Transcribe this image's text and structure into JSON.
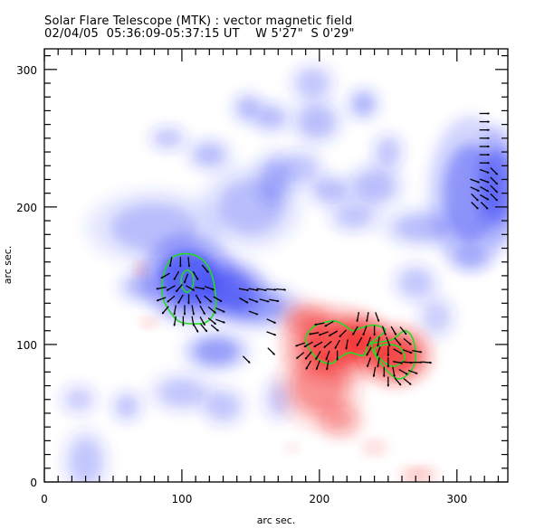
{
  "header": {
    "title": "Solar Flare Telescope (MTK) : vector magnetic field",
    "date": "02/04/05",
    "time_range": "05:36:09-05:37:15 UT",
    "position_ew": "W 5'27\"",
    "position_ns": "S 0'29\""
  },
  "chart_data": {
    "type": "heatmap",
    "title": "Solar Flare Telescope (MTK) : vector magnetic field",
    "subtitle": "02/04/05  05:36:09-05:37:15 UT    W 5'27\"  S 0'29\"",
    "xlabel": "arc sec.",
    "ylabel": "arc sec.",
    "xlim": [
      0,
      337
    ],
    "ylim": [
      0,
      315
    ],
    "xticks": [
      0,
      100,
      200,
      300
    ],
    "yticks": [
      0,
      100,
      200,
      300
    ],
    "xtick_labels": [
      "0",
      "100",
      "200",
      "300"
    ],
    "ytick_labels": [
      "0",
      "100",
      "200",
      "300"
    ],
    "minor_tick_step": 10,
    "colors": {
      "negative_polarity": "#3b46f5",
      "positive_polarity": "#f22020",
      "contour": "#22dd22",
      "vector": "#000000",
      "frame": "#000000"
    },
    "field_blobs": [
      {
        "polarity": "negative",
        "x": 105,
        "y": 148,
        "rx": 28,
        "ry": 26,
        "strength": 1.0
      },
      {
        "polarity": "negative",
        "x": 135,
        "y": 140,
        "rx": 22,
        "ry": 18,
        "strength": 0.8
      },
      {
        "polarity": "negative",
        "x": 155,
        "y": 128,
        "rx": 26,
        "ry": 14,
        "strength": 0.55
      },
      {
        "polarity": "negative",
        "x": 125,
        "y": 95,
        "rx": 20,
        "ry": 12,
        "strength": 0.55
      },
      {
        "polarity": "negative",
        "x": 80,
        "y": 185,
        "rx": 40,
        "ry": 22,
        "strength": 0.35
      },
      {
        "polarity": "negative",
        "x": 150,
        "y": 200,
        "rx": 30,
        "ry": 25,
        "strength": 0.35
      },
      {
        "polarity": "negative",
        "x": 70,
        "y": 142,
        "rx": 14,
        "ry": 10,
        "strength": 0.35
      },
      {
        "polarity": "negative",
        "x": 90,
        "y": 250,
        "rx": 12,
        "ry": 8,
        "strength": 0.3
      },
      {
        "polarity": "negative",
        "x": 120,
        "y": 238,
        "rx": 14,
        "ry": 10,
        "strength": 0.35
      },
      {
        "polarity": "negative",
        "x": 148,
        "y": 272,
        "rx": 10,
        "ry": 10,
        "strength": 0.35
      },
      {
        "polarity": "negative",
        "x": 165,
        "y": 265,
        "rx": 12,
        "ry": 10,
        "strength": 0.35
      },
      {
        "polarity": "negative",
        "x": 198,
        "y": 262,
        "rx": 16,
        "ry": 14,
        "strength": 0.35
      },
      {
        "polarity": "negative",
        "x": 232,
        "y": 275,
        "rx": 10,
        "ry": 10,
        "strength": 0.4
      },
      {
        "polarity": "negative",
        "x": 208,
        "y": 212,
        "rx": 14,
        "ry": 10,
        "strength": 0.35
      },
      {
        "polarity": "negative",
        "x": 185,
        "y": 228,
        "rx": 16,
        "ry": 12,
        "strength": 0.3
      },
      {
        "polarity": "negative",
        "x": 167,
        "y": 220,
        "rx": 12,
        "ry": 18,
        "strength": 0.35
      },
      {
        "polarity": "negative",
        "x": 225,
        "y": 193,
        "rx": 16,
        "ry": 10,
        "strength": 0.3
      },
      {
        "polarity": "negative",
        "x": 240,
        "y": 215,
        "rx": 18,
        "ry": 14,
        "strength": 0.35
      },
      {
        "polarity": "negative",
        "x": 250,
        "y": 240,
        "rx": 10,
        "ry": 12,
        "strength": 0.3
      },
      {
        "polarity": "negative",
        "x": 310,
        "y": 210,
        "rx": 25,
        "ry": 45,
        "strength": 0.6
      },
      {
        "polarity": "negative",
        "x": 330,
        "y": 215,
        "rx": 14,
        "ry": 35,
        "strength": 0.7
      },
      {
        "polarity": "negative",
        "x": 275,
        "y": 185,
        "rx": 25,
        "ry": 12,
        "strength": 0.35
      },
      {
        "polarity": "negative",
        "x": 270,
        "y": 145,
        "rx": 14,
        "ry": 12,
        "strength": 0.3
      },
      {
        "polarity": "negative",
        "x": 310,
        "y": 165,
        "rx": 14,
        "ry": 10,
        "strength": 0.3
      },
      {
        "polarity": "negative",
        "x": 195,
        "y": 290,
        "rx": 14,
        "ry": 12,
        "strength": 0.3
      },
      {
        "polarity": "negative",
        "x": 60,
        "y": 55,
        "rx": 10,
        "ry": 10,
        "strength": 0.3
      },
      {
        "polarity": "negative",
        "x": 100,
        "y": 65,
        "rx": 20,
        "ry": 12,
        "strength": 0.3
      },
      {
        "polarity": "negative",
        "x": 130,
        "y": 55,
        "rx": 14,
        "ry": 12,
        "strength": 0.3
      },
      {
        "polarity": "negative",
        "x": 30,
        "y": 15,
        "rx": 14,
        "ry": 20,
        "strength": 0.3
      },
      {
        "polarity": "negative",
        "x": 25,
        "y": 60,
        "rx": 12,
        "ry": 10,
        "strength": 0.25
      },
      {
        "polarity": "negative",
        "x": 170,
        "y": 60,
        "rx": 10,
        "ry": 14,
        "strength": 0.25
      },
      {
        "polarity": "negative",
        "x": 285,
        "y": 120,
        "rx": 12,
        "ry": 14,
        "strength": 0.25
      },
      {
        "polarity": "positive",
        "x": 210,
        "y": 100,
        "rx": 30,
        "ry": 22,
        "strength": 0.85
      },
      {
        "polarity": "positive",
        "x": 255,
        "y": 92,
        "rx": 22,
        "ry": 18,
        "strength": 0.95
      },
      {
        "polarity": "positive",
        "x": 232,
        "y": 105,
        "rx": 15,
        "ry": 14,
        "strength": 0.7
      },
      {
        "polarity": "positive",
        "x": 200,
        "y": 70,
        "rx": 25,
        "ry": 25,
        "strength": 0.5
      },
      {
        "polarity": "positive",
        "x": 215,
        "y": 45,
        "rx": 15,
        "ry": 12,
        "strength": 0.35
      },
      {
        "polarity": "positive",
        "x": 190,
        "y": 118,
        "rx": 16,
        "ry": 12,
        "strength": 0.45
      },
      {
        "polarity": "positive",
        "x": 272,
        "y": 5,
        "rx": 12,
        "ry": 5,
        "strength": 0.3
      },
      {
        "polarity": "positive",
        "x": 240,
        "y": 25,
        "rx": 8,
        "ry": 5,
        "strength": 0.2
      },
      {
        "polarity": "positive",
        "x": 70,
        "y": 155,
        "rx": 4,
        "ry": 4,
        "strength": 0.3
      },
      {
        "polarity": "positive",
        "x": 76,
        "y": 116,
        "rx": 5,
        "ry": 3,
        "strength": 0.3
      },
      {
        "polarity": "positive",
        "x": 180,
        "y": 25,
        "rx": 4,
        "ry": 3,
        "strength": 0.2
      }
    ],
    "contours": [
      {
        "name": "negative-outer",
        "points": [
          [
            87,
            152
          ],
          [
            93,
            163
          ],
          [
            103,
            166
          ],
          [
            113,
            163
          ],
          [
            120,
            155
          ],
          [
            124,
            140
          ],
          [
            124,
            125
          ],
          [
            117,
            116
          ],
          [
            100,
            116
          ],
          [
            92,
            123
          ],
          [
            86,
            135
          ]
        ]
      },
      {
        "name": "negative-inner",
        "points": [
          [
            100,
            150
          ],
          [
            104,
            154
          ],
          [
            108,
            150
          ],
          [
            108,
            143
          ],
          [
            104,
            138
          ],
          [
            100,
            142
          ]
        ]
      },
      {
        "name": "positive-left",
        "points": [
          [
            190,
            103
          ],
          [
            196,
            113
          ],
          [
            210,
            117
          ],
          [
            218,
            114
          ],
          [
            224,
            110
          ],
          [
            230,
            112
          ],
          [
            240,
            114
          ],
          [
            248,
            110
          ],
          [
            236,
            100
          ],
          [
            232,
            92
          ],
          [
            222,
            94
          ],
          [
            214,
            90
          ],
          [
            208,
            86
          ],
          [
            198,
            90
          ]
        ]
      },
      {
        "name": "positive-right",
        "points": [
          [
            238,
            100
          ],
          [
            242,
            90
          ],
          [
            250,
            80
          ],
          [
            258,
            75
          ],
          [
            266,
            80
          ],
          [
            270,
            90
          ],
          [
            268,
            104
          ],
          [
            262,
            110
          ],
          [
            254,
            104
          ],
          [
            246,
            102
          ]
        ]
      },
      {
        "name": "positive-right-inner",
        "points": [
          [
            240,
            96
          ],
          [
            246,
            88
          ],
          [
            254,
            84
          ],
          [
            262,
            90
          ],
          [
            258,
            98
          ],
          [
            248,
            100
          ]
        ]
      }
    ],
    "vectors": [
      {
        "x": 92,
        "y": 160,
        "angle": 80
      },
      {
        "x": 99,
        "y": 160,
        "angle": 90
      },
      {
        "x": 105,
        "y": 160,
        "angle": 95
      },
      {
        "x": 88,
        "y": 150,
        "angle": 30
      },
      {
        "x": 96,
        "y": 150,
        "angle": 60
      },
      {
        "x": 103,
        "y": 148,
        "angle": 70
      },
      {
        "x": 110,
        "y": 150,
        "angle": 120
      },
      {
        "x": 117,
        "y": 155,
        "angle": 130
      },
      {
        "x": 85,
        "y": 141,
        "angle": 10
      },
      {
        "x": 92,
        "y": 141,
        "angle": 30
      },
      {
        "x": 98,
        "y": 141,
        "angle": 50
      },
      {
        "x": 106,
        "y": 141,
        "angle": 150
      },
      {
        "x": 113,
        "y": 141,
        "angle": 170
      },
      {
        "x": 120,
        "y": 141,
        "angle": 160
      },
      {
        "x": 85,
        "y": 133,
        "angle": 20
      },
      {
        "x": 92,
        "y": 133,
        "angle": 40
      },
      {
        "x": 99,
        "y": 133,
        "angle": 60
      },
      {
        "x": 105,
        "y": 133,
        "angle": 90
      },
      {
        "x": 112,
        "y": 133,
        "angle": 120
      },
      {
        "x": 119,
        "y": 133,
        "angle": 140
      },
      {
        "x": 126,
        "y": 133,
        "angle": 150
      },
      {
        "x": 88,
        "y": 125,
        "angle": 50
      },
      {
        "x": 95,
        "y": 125,
        "angle": 80
      },
      {
        "x": 102,
        "y": 125,
        "angle": 90
      },
      {
        "x": 108,
        "y": 125,
        "angle": 100
      },
      {
        "x": 115,
        "y": 125,
        "angle": 120
      },
      {
        "x": 122,
        "y": 125,
        "angle": 140
      },
      {
        "x": 128,
        "y": 125,
        "angle": 155
      },
      {
        "x": 95,
        "y": 117,
        "angle": 80
      },
      {
        "x": 101,
        "y": 117,
        "angle": 90
      },
      {
        "x": 108,
        "y": 117,
        "angle": 100
      },
      {
        "x": 115,
        "y": 117,
        "angle": 120
      },
      {
        "x": 122,
        "y": 117,
        "angle": 140
      },
      {
        "x": 128,
        "y": 117,
        "angle": 160
      },
      {
        "x": 110,
        "y": 112,
        "angle": 120
      },
      {
        "x": 116,
        "y": 112,
        "angle": 130
      },
      {
        "x": 124,
        "y": 112,
        "angle": 140
      },
      {
        "x": 145,
        "y": 140,
        "angle": 170
      },
      {
        "x": 152,
        "y": 140,
        "angle": 170
      },
      {
        "x": 158,
        "y": 140,
        "angle": 170
      },
      {
        "x": 165,
        "y": 140,
        "angle": 175
      },
      {
        "x": 172,
        "y": 140,
        "angle": 175
      },
      {
        "x": 145,
        "y": 132,
        "angle": 150
      },
      {
        "x": 152,
        "y": 132,
        "angle": 160
      },
      {
        "x": 160,
        "y": 132,
        "angle": 165
      },
      {
        "x": 167,
        "y": 132,
        "angle": 170
      },
      {
        "x": 152,
        "y": 123,
        "angle": 160
      },
      {
        "x": 165,
        "y": 117,
        "angle": 155
      },
      {
        "x": 165,
        "y": 108,
        "angle": 160
      },
      {
        "x": 165,
        "y": 95,
        "angle": 135
      },
      {
        "x": 147,
        "y": 89,
        "angle": 135
      },
      {
        "x": 320,
        "y": 268,
        "angle": 180
      },
      {
        "x": 320,
        "y": 262,
        "angle": 180
      },
      {
        "x": 320,
        "y": 256,
        "angle": 180
      },
      {
        "x": 320,
        "y": 250,
        "angle": 180
      },
      {
        "x": 320,
        "y": 244,
        "angle": 180
      },
      {
        "x": 320,
        "y": 238,
        "angle": 180
      },
      {
        "x": 320,
        "y": 232,
        "angle": 180
      },
      {
        "x": 320,
        "y": 226,
        "angle": 160
      },
      {
        "x": 327,
        "y": 226,
        "angle": 135
      },
      {
        "x": 313,
        "y": 219,
        "angle": 160
      },
      {
        "x": 320,
        "y": 219,
        "angle": 160
      },
      {
        "x": 327,
        "y": 219,
        "angle": 135
      },
      {
        "x": 313,
        "y": 213,
        "angle": 155
      },
      {
        "x": 320,
        "y": 213,
        "angle": 150
      },
      {
        "x": 327,
        "y": 213,
        "angle": 135
      },
      {
        "x": 313,
        "y": 207,
        "angle": 135
      },
      {
        "x": 320,
        "y": 207,
        "angle": 150
      },
      {
        "x": 327,
        "y": 207,
        "angle": 135
      },
      {
        "x": 313,
        "y": 201,
        "angle": 135
      },
      {
        "x": 320,
        "y": 201,
        "angle": 135
      },
      {
        "x": 186,
        "y": 100,
        "angle": 20
      },
      {
        "x": 192,
        "y": 100,
        "angle": 30
      },
      {
        "x": 199,
        "y": 100,
        "angle": 30
      },
      {
        "x": 206,
        "y": 100,
        "angle": 40
      },
      {
        "x": 213,
        "y": 100,
        "angle": 60
      },
      {
        "x": 220,
        "y": 100,
        "angle": 80
      },
      {
        "x": 186,
        "y": 92,
        "angle": 40
      },
      {
        "x": 192,
        "y": 92,
        "angle": 50
      },
      {
        "x": 199,
        "y": 92,
        "angle": 60
      },
      {
        "x": 206,
        "y": 92,
        "angle": 70
      },
      {
        "x": 213,
        "y": 92,
        "angle": 90
      },
      {
        "x": 192,
        "y": 85,
        "angle": 60
      },
      {
        "x": 199,
        "y": 85,
        "angle": 70
      },
      {
        "x": 206,
        "y": 85,
        "angle": 80
      },
      {
        "x": 196,
        "y": 108,
        "angle": 10
      },
      {
        "x": 203,
        "y": 108,
        "angle": 20
      },
      {
        "x": 210,
        "y": 108,
        "angle": 30
      },
      {
        "x": 217,
        "y": 108,
        "angle": 45
      },
      {
        "x": 200,
        "y": 115,
        "angle": 10
      },
      {
        "x": 207,
        "y": 115,
        "angle": 30
      },
      {
        "x": 228,
        "y": 120,
        "angle": 80
      },
      {
        "x": 235,
        "y": 120,
        "angle": 80
      },
      {
        "x": 242,
        "y": 120,
        "angle": 110
      },
      {
        "x": 226,
        "y": 110,
        "angle": 60
      },
      {
        "x": 233,
        "y": 110,
        "angle": 70
      },
      {
        "x": 240,
        "y": 110,
        "angle": 90
      },
      {
        "x": 247,
        "y": 110,
        "angle": 110
      },
      {
        "x": 254,
        "y": 110,
        "angle": 120
      },
      {
        "x": 261,
        "y": 110,
        "angle": 130
      },
      {
        "x": 229,
        "y": 102,
        "angle": 60
      },
      {
        "x": 236,
        "y": 102,
        "angle": 70
      },
      {
        "x": 243,
        "y": 102,
        "angle": 80
      },
      {
        "x": 250,
        "y": 102,
        "angle": 110
      },
      {
        "x": 257,
        "y": 102,
        "angle": 130
      },
      {
        "x": 264,
        "y": 102,
        "angle": 140
      },
      {
        "x": 236,
        "y": 95,
        "angle": 60
      },
      {
        "x": 243,
        "y": 95,
        "angle": 70
      },
      {
        "x": 250,
        "y": 95,
        "angle": 90
      },
      {
        "x": 257,
        "y": 95,
        "angle": 150
      },
      {
        "x": 264,
        "y": 95,
        "angle": 160
      },
      {
        "x": 271,
        "y": 95,
        "angle": 170
      },
      {
        "x": 236,
        "y": 87,
        "angle": 70
      },
      {
        "x": 243,
        "y": 87,
        "angle": 80
      },
      {
        "x": 250,
        "y": 87,
        "angle": 90
      },
      {
        "x": 257,
        "y": 87,
        "angle": 170
      },
      {
        "x": 264,
        "y": 87,
        "angle": 175
      },
      {
        "x": 271,
        "y": 87,
        "angle": 180
      },
      {
        "x": 278,
        "y": 87,
        "angle": 175
      },
      {
        "x": 240,
        "y": 80,
        "angle": 80
      },
      {
        "x": 247,
        "y": 80,
        "angle": 90
      },
      {
        "x": 254,
        "y": 80,
        "angle": 100
      },
      {
        "x": 261,
        "y": 80,
        "angle": 150
      },
      {
        "x": 268,
        "y": 80,
        "angle": 160
      },
      {
        "x": 250,
        "y": 73,
        "angle": 90
      },
      {
        "x": 257,
        "y": 73,
        "angle": 130
      },
      {
        "x": 264,
        "y": 73,
        "angle": 140
      }
    ]
  },
  "axes": {
    "x_label": "arc sec.",
    "y_label": "arc sec."
  }
}
